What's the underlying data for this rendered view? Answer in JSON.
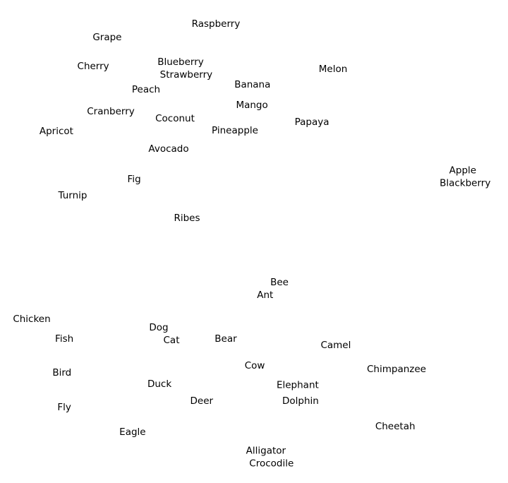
{
  "chart_data": {
    "type": "scatter",
    "title": "",
    "xlabel": "",
    "ylabel": "",
    "xlim": [
      -10,
      10
    ],
    "ylim": [
      -10.06,
      10.06
    ],
    "grid": false,
    "axes_visible": false,
    "marker": "text-label-only",
    "text_color": "#000000",
    "points": [
      {
        "label": "Grape",
        "x": -5.78,
        "y": 8.5
      },
      {
        "label": "Raspberry",
        "x": -1.5,
        "y": 9.06
      },
      {
        "label": "Cherry",
        "x": -6.33,
        "y": 7.29
      },
      {
        "label": "Blueberry",
        "x": -2.89,
        "y": 7.35
      },
      {
        "label": "Strawberry",
        "x": -2.67,
        "y": 7.06
      },
      {
        "label": "Melon",
        "x": 3.11,
        "y": 7.18
      },
      {
        "label": "Peach",
        "x": -4.25,
        "y": 6.32
      },
      {
        "label": "Banana",
        "x": -0.06,
        "y": 6.53
      },
      {
        "label": "Cranberry",
        "x": -5.64,
        "y": 5.41
      },
      {
        "label": "Coconut",
        "x": -3.11,
        "y": 5.12
      },
      {
        "label": "Mango",
        "x": -0.08,
        "y": 5.68
      },
      {
        "label": "Papaya",
        "x": 2.28,
        "y": 4.97
      },
      {
        "label": "Apricot",
        "x": -7.78,
        "y": 4.59
      },
      {
        "label": "Pineapple",
        "x": -0.75,
        "y": 4.62
      },
      {
        "label": "Avocado",
        "x": -3.36,
        "y": 3.85
      },
      {
        "label": "Apple",
        "x": 8.22,
        "y": 2.74
      },
      {
        "label": "Blackberry",
        "x": 8.31,
        "y": 2.65
      },
      {
        "label": "Fig",
        "x": -4.72,
        "y": 2.59
      },
      {
        "label": "Turnip",
        "x": -7.14,
        "y": 1.91
      },
      {
        "label": "Ribes",
        "x": -2.64,
        "y": 0.97
      },
      {
        "label": "Bee",
        "x": 1.0,
        "y": -1.76
      },
      {
        "label": "Ant",
        "x": 0.44,
        "y": -2.18
      },
      {
        "label": "Chicken",
        "x": -8.75,
        "y": -3.24
      },
      {
        "label": "Fish",
        "x": -7.47,
        "y": -4.06
      },
      {
        "label": "Dog",
        "x": -3.75,
        "y": -3.74
      },
      {
        "label": "Cat",
        "x": -3.25,
        "y": -3.97
      },
      {
        "label": "Bear",
        "x": -1.11,
        "y": -4.06
      },
      {
        "label": "Camel",
        "x": 3.22,
        "y": -4.32
      },
      {
        "label": "Cow",
        "x": 0.03,
        "y": -5.18
      },
      {
        "label": "Chimpanzee",
        "x": 5.61,
        "y": -5.32
      },
      {
        "label": "Bird",
        "x": -7.56,
        "y": -5.47
      },
      {
        "label": "Duck",
        "x": -3.72,
        "y": -5.94
      },
      {
        "label": "Elephant",
        "x": 1.72,
        "y": -5.99
      },
      {
        "label": "Deer",
        "x": -2.06,
        "y": -6.65
      },
      {
        "label": "Dolphin",
        "x": 1.83,
        "y": -6.65
      },
      {
        "label": "Fly",
        "x": -7.47,
        "y": -6.91
      },
      {
        "label": "Cheetah",
        "x": 5.56,
        "y": -7.71
      },
      {
        "label": "Eagle",
        "x": -4.78,
        "y": -7.94
      },
      {
        "label": "Alligator",
        "x": 0.47,
        "y": -8.94
      },
      {
        "label": "Crocodile",
        "x": 0.69,
        "y": -9.03
      }
    ]
  }
}
